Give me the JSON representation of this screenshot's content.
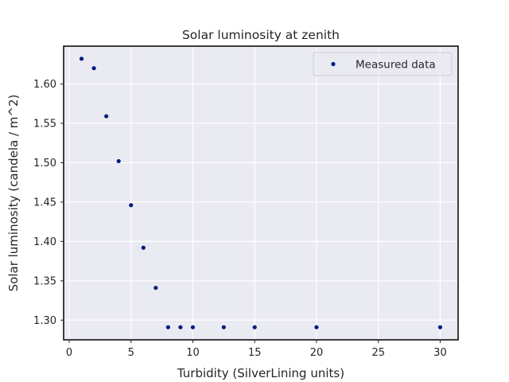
{
  "chart_data": {
    "type": "scatter",
    "title": "Solar luminosity at zenith",
    "xlabel": "Turbidity (SilverLining units)",
    "ylabel": "Solar luminosity (candela / m^2)",
    "xlim": [
      -0.45,
      31.45
    ],
    "ylim": [
      1.275,
      1.648
    ],
    "xticks": [
      0,
      5,
      10,
      15,
      20,
      25,
      30
    ],
    "xtick_labels": [
      "0",
      "5",
      "10",
      "15",
      "20",
      "25",
      "30"
    ],
    "yticks": [
      1.3,
      1.35,
      1.4,
      1.45,
      1.5,
      1.55,
      1.6
    ],
    "ytick_labels": [
      "1.30",
      "1.35",
      "1.40",
      "1.45",
      "1.50",
      "1.55",
      "1.60"
    ],
    "grid": true,
    "legend": "top-right",
    "series": [
      {
        "name": "Measured data",
        "color": "#001c7f",
        "marker": "point",
        "x": [
          1,
          2,
          3,
          4,
          5,
          6,
          7,
          8,
          9,
          10,
          12.5,
          15,
          20,
          30
        ],
        "y": [
          1.632,
          1.62,
          1.559,
          1.502,
          1.446,
          1.392,
          1.341,
          1.291,
          1.291,
          1.291,
          1.291,
          1.291,
          1.291,
          1.291
        ]
      }
    ]
  }
}
